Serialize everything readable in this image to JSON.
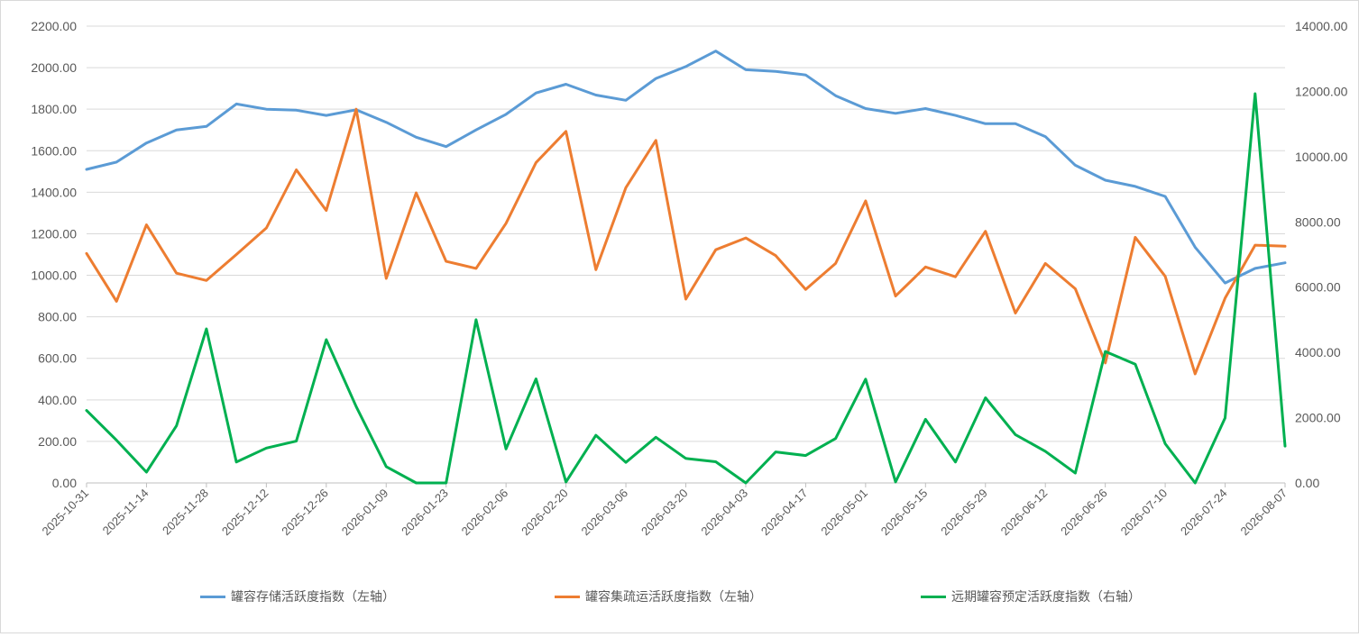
{
  "chart_data": {
    "type": "line",
    "x_tick_labels": [
      "2025-10-31",
      "2025-11-14",
      "2025-11-28",
      "2025-12-12",
      "2025-12-26",
      "2026-01-09",
      "2026-01-23",
      "2026-02-06",
      "2026-02-20",
      "2026-03-06",
      "2026-03-20",
      "2026-04-03",
      "2026-04-17",
      "2026-05-01",
      "2026-05-15",
      "2026-05-29",
      "2026-06-12",
      "2026-06-26",
      "2026-07-10",
      "2026-07-24",
      "2026-08-07"
    ],
    "x": [
      "2025-10-31",
      "2025-11-07",
      "2025-11-14",
      "2025-11-21",
      "2025-11-28",
      "2025-12-05",
      "2025-12-12",
      "2025-12-19",
      "2025-12-26",
      "2026-01-02",
      "2026-01-09",
      "2026-01-16",
      "2026-01-23",
      "2026-01-30",
      "2026-02-06",
      "2026-02-13",
      "2026-02-20",
      "2026-02-27",
      "2026-03-06",
      "2026-03-13",
      "2026-03-20",
      "2026-03-27",
      "2026-04-03",
      "2026-04-10",
      "2026-04-17",
      "2026-04-24",
      "2026-05-01",
      "2026-05-08",
      "2026-05-15",
      "2026-05-22",
      "2026-05-29",
      "2026-06-05",
      "2026-06-12",
      "2026-06-19",
      "2026-06-26",
      "2026-07-03",
      "2026-07-10",
      "2026-07-17",
      "2026-07-24",
      "2026-07-31",
      "2026-08-07"
    ],
    "y_left": {
      "ticks": [
        "0.00",
        "200.00",
        "400.00",
        "600.00",
        "800.00",
        "1000.00",
        "1200.00",
        "1400.00",
        "1600.00",
        "1800.00",
        "2000.00",
        "2200.00"
      ],
      "range": [
        0,
        2200
      ]
    },
    "y_right": {
      "ticks": [
        "0.00",
        "2000.00",
        "4000.00",
        "6000.00",
        "8000.00",
        "10000.00",
        "12000.00",
        "14000.00"
      ],
      "range": [
        0,
        14000
      ]
    },
    "grid": true,
    "legend_position": "bottom",
    "series": [
      {
        "name": "罐容存储活跃度指数（左轴）",
        "axis": "left",
        "color": "#5b9bd5",
        "values": [
          1510,
          1545,
          1637,
          1700,
          1717,
          1825,
          1800,
          1795,
          1770,
          1797,
          1737,
          1665,
          1620,
          1700,
          1775,
          1878,
          1920,
          1868,
          1843,
          1948,
          2005,
          2080,
          1990,
          1982,
          1965,
          1865,
          1803,
          1780,
          1803,
          1770,
          1730,
          1730,
          1668,
          1530,
          1458,
          1428,
          1380,
          1135,
          963,
          1033,
          1060
        ]
      },
      {
        "name": "罐容集疏运活跃度指数（左轴）",
        "axis": "left",
        "color": "#ed7d31",
        "values": [
          1105,
          875,
          1243,
          1010,
          975,
          1100,
          1228,
          1508,
          1312,
          1800,
          985,
          1397,
          1067,
          1033,
          1250,
          1543,
          1693,
          1027,
          1422,
          1650,
          885,
          1123,
          1180,
          1095,
          932,
          1057,
          1358,
          900,
          1040,
          993,
          1212,
          818,
          1057,
          935,
          578,
          1183,
          995,
          525,
          890,
          1145,
          1140
        ]
      },
      {
        "name": "远期罐容预定活跃度指数（右轴）",
        "axis": "right",
        "color": "#00b050",
        "values": [
          2220,
          1310,
          330,
          1750,
          4720,
          640,
          1070,
          1280,
          4390,
          2340,
          500,
          0,
          0,
          5000,
          1040,
          3190,
          30,
          1460,
          630,
          1400,
          750,
          650,
          0,
          950,
          840,
          1360,
          3180,
          30,
          1950,
          640,
          2610,
          1480,
          970,
          300,
          4030,
          3640,
          1200,
          0,
          1990,
          11930,
          1130
        ]
      }
    ]
  }
}
